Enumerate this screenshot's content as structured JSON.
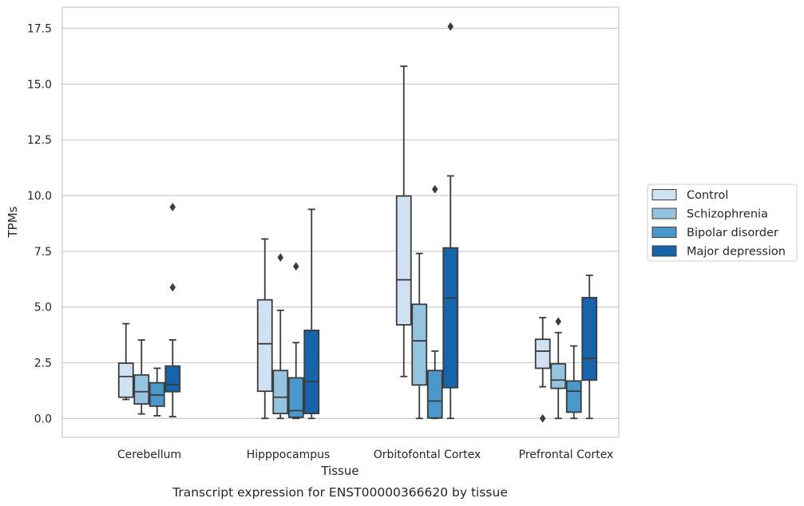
{
  "caption": "Transcript expression for ENST00000366620 by tissue",
  "chart_data": {
    "type": "box",
    "xlabel": "Tissue",
    "ylabel": "TPMs",
    "ylim": [
      -0.85,
      18.45
    ],
    "yticks": [
      "0.0",
      "2.5",
      "5.0",
      "7.5",
      "10.0",
      "12.5",
      "15.0",
      "17.5"
    ],
    "ytick_values": [
      0,
      2.5,
      5,
      7.5,
      10,
      12.5,
      15,
      17.5
    ],
    "grid": "horizontal",
    "legend_position": "right, outside plot",
    "categories": [
      "Cerebellum",
      "Hipppocampus",
      "Orbitofontal Cortex",
      "Prefrontal Cortex"
    ],
    "series": [
      {
        "name": "Control",
        "color": "#d0e1f2",
        "boxes": [
          {
            "whislo": 0.85,
            "q1": 0.95,
            "med": 1.88,
            "q3": 2.48,
            "whishi": 4.25,
            "fliers": []
          },
          {
            "whislo": 0.0,
            "q1": 1.22,
            "med": 3.35,
            "q3": 5.32,
            "whishi": 8.05,
            "fliers": []
          },
          {
            "whislo": 1.88,
            "q1": 4.2,
            "med": 6.22,
            "q3": 9.98,
            "whishi": 15.8,
            "fliers": []
          },
          {
            "whislo": 1.42,
            "q1": 2.25,
            "med": 3.02,
            "q3": 3.55,
            "whishi": 4.52,
            "fliers": [
              0.0
            ]
          }
        ]
      },
      {
        "name": "Schizophrenia",
        "color": "#94c4df",
        "boxes": [
          {
            "whislo": 0.2,
            "q1": 0.65,
            "med": 1.2,
            "q3": 1.95,
            "whishi": 3.52,
            "fliers": []
          },
          {
            "whislo": 0.0,
            "q1": 0.22,
            "med": 0.95,
            "q3": 2.15,
            "whishi": 4.85,
            "fliers": [
              7.22
            ]
          },
          {
            "whislo": 0.0,
            "q1": 1.5,
            "med": 3.48,
            "q3": 5.12,
            "whishi": 7.4,
            "fliers": []
          },
          {
            "whislo": 0.0,
            "q1": 1.35,
            "med": 1.72,
            "q3": 2.45,
            "whishi": 3.85,
            "fliers": [
              4.35
            ]
          }
        ]
      },
      {
        "name": "Bipolar disorder",
        "color": "#4a98c9",
        "boxes": [
          {
            "whislo": 0.12,
            "q1": 0.55,
            "med": 1.05,
            "q3": 1.6,
            "whishi": 2.25,
            "fliers": []
          },
          {
            "whislo": 0.0,
            "q1": 0.05,
            "med": 0.35,
            "q3": 1.82,
            "whishi": 3.4,
            "fliers": [
              6.82
            ]
          },
          {
            "whislo": 0.0,
            "q1": 0.02,
            "med": 0.78,
            "q3": 2.15,
            "whishi": 3.02,
            "fliers": [
              10.28
            ]
          },
          {
            "whislo": 0.0,
            "q1": 0.28,
            "med": 1.22,
            "q3": 1.68,
            "whishi": 3.25,
            "fliers": []
          }
        ]
      },
      {
        "name": "Major depression",
        "color": "#1764ab",
        "boxes": [
          {
            "whislo": 0.08,
            "q1": 1.2,
            "med": 1.52,
            "q3": 2.35,
            "whishi": 3.52,
            "fliers": [
              5.88,
              9.48
            ]
          },
          {
            "whislo": 0.0,
            "q1": 0.22,
            "med": 1.65,
            "q3": 3.95,
            "whishi": 9.38,
            "fliers": []
          },
          {
            "whislo": 0.0,
            "q1": 1.38,
            "med": 5.4,
            "q3": 7.65,
            "whishi": 10.88,
            "fliers": [
              17.58
            ]
          },
          {
            "whislo": 0.0,
            "q1": 1.72,
            "med": 2.7,
            "q3": 5.42,
            "whishi": 6.42,
            "fliers": []
          }
        ]
      }
    ]
  }
}
